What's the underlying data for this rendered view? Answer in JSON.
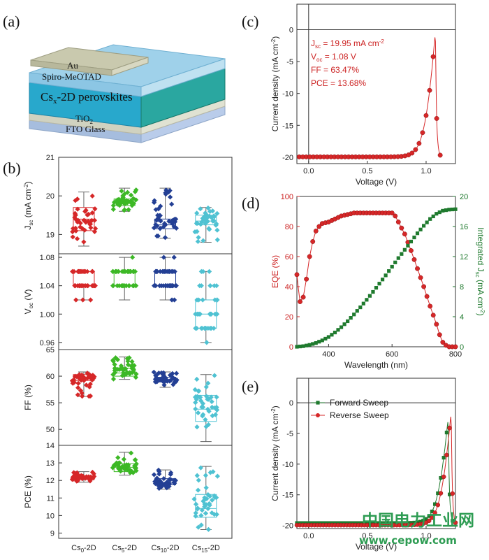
{
  "panels": {
    "a": "(a)",
    "b": "(b)",
    "c": "(c)",
    "d": "(d)",
    "e": "(e)"
  },
  "device_layers": {
    "au": "Au",
    "spiro": "Spiro-MeOTAD",
    "perovskite_main": "Cs",
    "perovskite_sub": "x",
    "perovskite_rest": "-2D perovskites",
    "tio2_main": "TiO",
    "tio2_sub": "2",
    "fto": "FTO Glass"
  },
  "watermark": {
    "cn": "中国电力工业网",
    "url": "www.cepow.com"
  },
  "chart_data": [
    {
      "id": "b",
      "type": "box",
      "categories": [
        {
          "main": "Cs",
          "sub": "0",
          "rest": "-2D"
        },
        {
          "main": "Cs",
          "sub": "5",
          "rest": "-2D"
        },
        {
          "main": "Cs",
          "sub": "10",
          "rest": "-2D"
        },
        {
          "main": "Cs",
          "sub": "15",
          "rest": "-2D"
        }
      ],
      "colors": [
        "#d62728",
        "#3cb825",
        "#233f94",
        "#4fc2d2"
      ],
      "subplots": [
        {
          "ylabel_main": "J",
          "ylabel_sub": "sc",
          "ylabel_rest": " (mA cm",
          "ylabel_sup": "-2",
          "ylabel_end": ")",
          "ylim": [
            18.5,
            21
          ],
          "ticks": [
            19,
            20,
            21
          ],
          "boxes": [
            {
              "q1": 19.1,
              "median": 19.4,
              "q3": 19.7,
              "min": 18.7,
              "max": 20.1
            },
            {
              "q1": 19.75,
              "median": 19.82,
              "q3": 19.92,
              "min": 19.6,
              "max": 20.2
            },
            {
              "q1": 19.15,
              "median": 19.25,
              "q3": 19.4,
              "min": 18.9,
              "max": 20.2
            },
            {
              "q1": 19.25,
              "median": 19.35,
              "q3": 19.5,
              "min": 18.8,
              "max": 19.7
            }
          ]
        },
        {
          "ylabel_main": "V",
          "ylabel_sub": "oc",
          "ylabel_rest": " (V)",
          "ylim": [
            0.95,
            1.085
          ],
          "ticks": [
            0.96,
            1.0,
            1.04,
            1.08
          ],
          "tick_labels": [
            "0.96",
            "1.00",
            "1.04",
            "1.08"
          ],
          "boxes": [
            {
              "q1": 1.04,
              "median": 1.04,
              "q3": 1.06,
              "min": 1.02,
              "max": 1.06
            },
            {
              "q1": 1.04,
              "median": 1.06,
              "q3": 1.06,
              "min": 1.02,
              "max": 1.08
            },
            {
              "q1": 1.04,
              "median": 1.04,
              "q3": 1.06,
              "min": 1.02,
              "max": 1.08
            },
            {
              "q1": 0.98,
              "median": 1.0,
              "q3": 1.02,
              "min": 0.96,
              "max": 1.06
            }
          ]
        },
        {
          "ylabel_main": "FF (%)",
          "ylim": [
            47,
            65
          ],
          "ticks": [
            50,
            55,
            60,
            65
          ],
          "boxes": [
            {
              "q1": 59.2,
              "median": 59.8,
              "q3": 60.3,
              "min": 56.2,
              "max": 60.8
            },
            {
              "q1": 60.0,
              "median": 60.6,
              "q3": 61.5,
              "min": 59.4,
              "max": 63.6
            },
            {
              "q1": 58.9,
              "median": 59.4,
              "q3": 59.8,
              "min": 57.9,
              "max": 60.8
            },
            {
              "q1": 51.5,
              "median": 53.8,
              "q3": 56.4,
              "min": 47.7,
              "max": 60.3
            }
          ]
        },
        {
          "ylabel_main": "PCE (%)",
          "ylim": [
            8.7,
            14
          ],
          "ticks": [
            9,
            10,
            11,
            12,
            13,
            14
          ],
          "boxes": [
            {
              "q1": 12.05,
              "median": 12.15,
              "q3": 12.25,
              "min": 11.9,
              "max": 12.5
            },
            {
              "q1": 12.5,
              "median": 12.75,
              "q3": 12.95,
              "min": 12.3,
              "max": 13.6
            },
            {
              "q1": 11.75,
              "median": 11.9,
              "q3": 12.1,
              "min": 11.5,
              "max": 12.6
            },
            {
              "q1": 9.9,
              "median": 10.4,
              "q3": 11.2,
              "min": 9.2,
              "max": 12.8
            }
          ]
        }
      ]
    },
    {
      "id": "c",
      "type": "line",
      "xlabel": "Voltage (V)",
      "ylabel_main": "Current density (mA cm",
      "ylabel_sup": "-2",
      "ylabel_end": ")",
      "xlim": [
        -0.1,
        1.25
      ],
      "ylim": [
        -21,
        4
      ],
      "xticks": [
        0.0,
        0.5,
        1.0
      ],
      "xtick_labels": [
        "0.0",
        "0.5",
        "1.0"
      ],
      "yticks": [
        -20,
        -15,
        -10,
        -5,
        0
      ],
      "series": [
        {
          "color": "#d62728",
          "params": {
            "jsc": 19.95,
            "voc": 1.08,
            "ff": 0.6347
          }
        }
      ],
      "annotations": [
        {
          "main": "J",
          "sub": "sc",
          "rest": " = 19.95 mA cm",
          "sup": "-2"
        },
        {
          "main": "V",
          "sub": "oc",
          "rest": " = 1.08 V"
        },
        {
          "main": "FF = 63.47%"
        },
        {
          "main": "PCE = 13.68%"
        }
      ]
    },
    {
      "id": "d",
      "type": "line",
      "xlabel": "Wavelength (nm)",
      "ylabel_left": "EQE (%)",
      "ylabel_right_main": "Integrated J",
      "ylabel_right_sub": "sc",
      "ylabel_right_rest": " (mA cm",
      "ylabel_right_sup": "-2",
      "ylabel_right_end": ")",
      "xlim": [
        300,
        800
      ],
      "ylim_left": [
        0,
        100
      ],
      "ylim_right": [
        0,
        20
      ],
      "xticks": [
        400,
        600,
        800
      ],
      "yticks_left": [
        0,
        20,
        40,
        60,
        80,
        100
      ],
      "yticks_right": [
        0,
        4,
        8,
        12,
        16,
        20
      ],
      "series": [
        {
          "axis": "left",
          "color": "#d62728",
          "marker": "circle",
          "x": [
            300,
            305,
            310,
            320,
            330,
            340,
            350,
            360,
            370,
            380,
            400,
            420,
            440,
            460,
            480,
            500,
            520,
            540,
            560,
            580,
            600,
            610,
            620,
            640,
            660,
            680,
            700,
            720,
            740,
            750,
            760,
            770,
            780,
            790,
            800
          ],
          "y": [
            48,
            38,
            30,
            33,
            45,
            60,
            70,
            77,
            80,
            82,
            83,
            85,
            87,
            88,
            89,
            89,
            89,
            89,
            89,
            89,
            89,
            87,
            83,
            75,
            64,
            52,
            40,
            27,
            15,
            8,
            3,
            1,
            0,
            0,
            0
          ]
        },
        {
          "axis": "right",
          "color": "#1f7a2e",
          "marker": "square",
          "x": [
            300,
            320,
            340,
            360,
            380,
            400,
            420,
            440,
            460,
            480,
            500,
            520,
            540,
            560,
            580,
            600,
            620,
            640,
            660,
            680,
            700,
            720,
            740,
            760,
            780,
            800
          ],
          "y": [
            0,
            0.08,
            0.25,
            0.5,
            0.85,
            1.3,
            1.9,
            2.6,
            3.4,
            4.3,
            5.25,
            6.25,
            7.3,
            8.4,
            9.5,
            10.65,
            11.8,
            12.9,
            14.0,
            15.1,
            16.1,
            17.0,
            17.7,
            18.1,
            18.25,
            18.3
          ]
        }
      ]
    },
    {
      "id": "e",
      "type": "line",
      "xlabel": "Voltage (V)",
      "ylabel_main": "Current density (mA cm",
      "ylabel_sup": "-2",
      "ylabel_end": ")",
      "xlim": [
        -0.1,
        1.25
      ],
      "ylim": [
        -20.5,
        4
      ],
      "xticks": [
        0.0,
        0.5,
        1.0
      ],
      "xtick_labels": [
        "0.0",
        "0.5",
        "1.0"
      ],
      "yticks": [
        -20,
        -15,
        -10,
        -5,
        0
      ],
      "legend_position": "top-left",
      "series": [
        {
          "name": "Forward Sweep",
          "color": "#1f7a2e",
          "marker": "square",
          "params": {
            "jsc": 19.6,
            "voc": 1.2,
            "ff": 0.58
          }
        },
        {
          "name": "Reverse Sweep",
          "color": "#d62728",
          "marker": "circle",
          "params": {
            "jsc": 19.95,
            "voc": 1.22,
            "ff": 0.61
          }
        }
      ]
    }
  ]
}
